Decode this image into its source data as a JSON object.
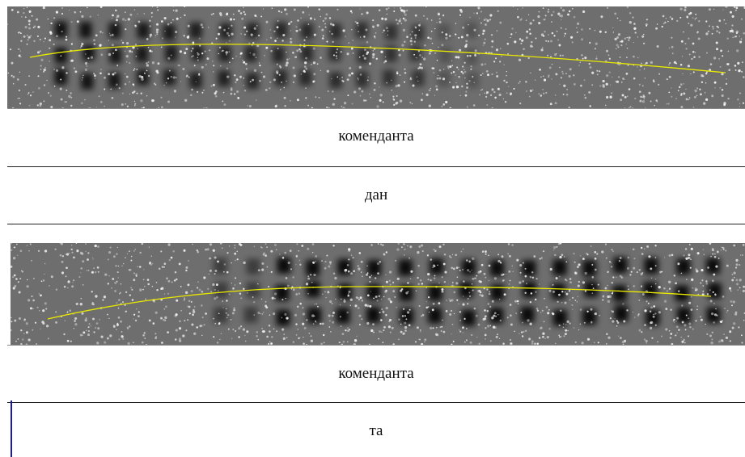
{
  "colors": {
    "baseline": "#e8e800",
    "cursor": "#1a1aa8",
    "divider": "#222222"
  },
  "samples": [
    {
      "image_alt": "handwriting line image 1",
      "label": "коменданта"
    },
    {
      "image_alt": "",
      "label": "дан"
    },
    {
      "image_alt": "handwriting line image 2",
      "label": "коменданта"
    },
    {
      "image_alt": "",
      "label": "та"
    }
  ]
}
